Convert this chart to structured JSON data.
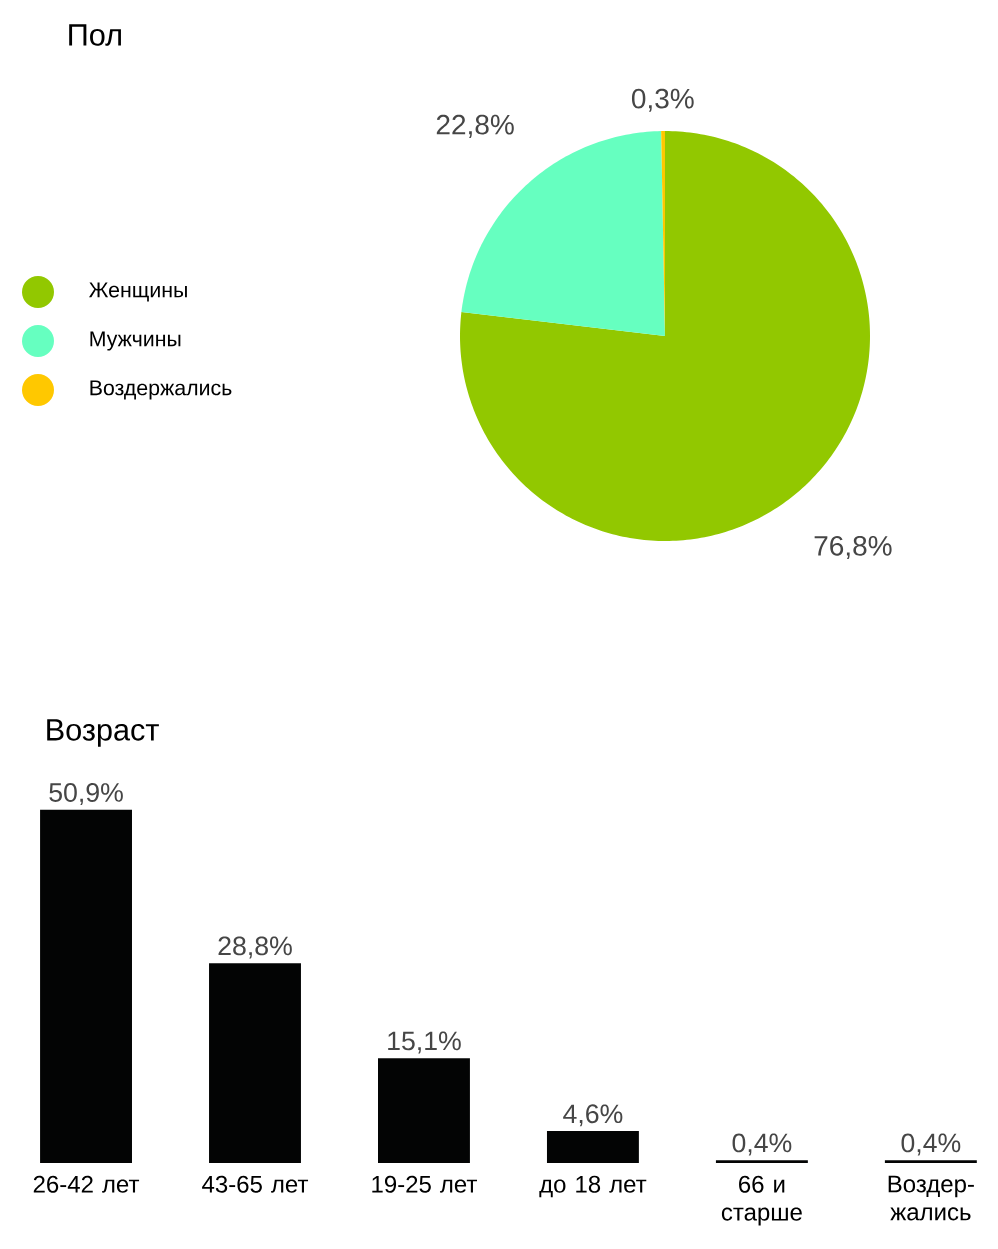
{
  "chart_data": [
    {
      "type": "pie",
      "title": "Пол",
      "categories": [
        "Женщины",
        "Мужчины",
        "Воздержались"
      ],
      "values": [
        76.8,
        22.8,
        0.3
      ],
      "colors": [
        "#92c800",
        "#66ffc0",
        "#ffc800"
      ],
      "value_labels": [
        "76,8%",
        "22,8%",
        "0,3%"
      ],
      "legend": "left"
    },
    {
      "type": "bar",
      "title": "Возраст",
      "categories": [
        "26-42 лет",
        "43-65 лет",
        "19-25 лет",
        "до 18 лет",
        "66 и старше",
        "Воздер-жались"
      ],
      "values": [
        50.9,
        28.8,
        15.1,
        4.6,
        0.4,
        0.4
      ],
      "color": "#030404",
      "value_labels": [
        "50,9%",
        "28,8%",
        "15,1%",
        "4,6%",
        "0,4%",
        "0,4%"
      ]
    }
  ]
}
